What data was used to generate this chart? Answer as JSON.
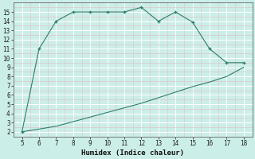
{
  "xlabel": "Humidex (Indice chaleur)",
  "x_upper": [
    5,
    6,
    7,
    8,
    9,
    10,
    11,
    12,
    13,
    14,
    15,
    16,
    17,
    18
  ],
  "y_upper": [
    2,
    11,
    14,
    15,
    15,
    15,
    15,
    15.5,
    14,
    15,
    13.9,
    11,
    9.5,
    9.5
  ],
  "x_lower": [
    5,
    6,
    7,
    8,
    9,
    10,
    11,
    12,
    13,
    14,
    15,
    16,
    17,
    18
  ],
  "y_lower": [
    2,
    2.3,
    2.6,
    3.1,
    3.6,
    4.1,
    4.6,
    5.1,
    5.7,
    6.3,
    6.9,
    7.4,
    8.0,
    9.0
  ],
  "line_color": "#2e7d6e",
  "bg_color": "#cceee8",
  "plot_bg_color": "#cceee8",
  "grid_color": "#ffffff",
  "minor_grid_color": "#ddc8c8",
  "ylim": [
    1.5,
    16
  ],
  "xlim": [
    4.5,
    18.5
  ],
  "yticks": [
    2,
    3,
    4,
    5,
    6,
    7,
    8,
    9,
    10,
    11,
    12,
    13,
    14,
    15
  ],
  "xticks": [
    5,
    6,
    7,
    8,
    9,
    10,
    11,
    12,
    13,
    14,
    15,
    16,
    17,
    18
  ],
  "tick_fontsize": 5.5,
  "xlabel_fontsize": 6.5
}
